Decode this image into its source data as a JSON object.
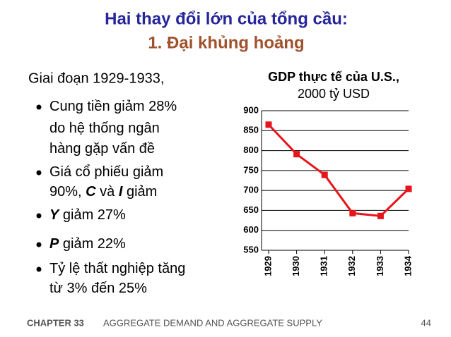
{
  "header": {
    "title": "Hai thay đổi lớn của tổng cầu:",
    "subtitle": "1.  Đại khủng hoảng"
  },
  "intro": "Giai đoạn 1929-1933,",
  "bullets": [
    {
      "lines": [
        [
          "Cung tiền giảm 28%"
        ],
        [
          "do hệ thống ngân"
        ],
        [
          "hàng gặp vấn đề"
        ]
      ]
    },
    {
      "lines": [
        [
          "Giá cổ phiếu giảm"
        ],
        [
          "90%, ",
          {
            "text": "C",
            "em": true
          },
          " và ",
          {
            "text": "I",
            "em": true
          },
          " giảm"
        ]
      ]
    },
    {
      "lines": [
        [
          {
            "text": "Y",
            "em": true
          },
          "  giảm 27%"
        ]
      ]
    },
    {
      "lines": [
        [
          {
            "text": "P",
            "em": true
          },
          "  giảm 22%"
        ]
      ]
    },
    {
      "lines": [
        [
          "Tỷ lệ thất nghiệp tăng"
        ],
        [
          "từ 3% đến 25%"
        ]
      ]
    }
  ],
  "chart_data": {
    "type": "line",
    "title": "GDP thực tế của U.S.,",
    "subtitle": "2000 tỷ USD",
    "categories": [
      "1929",
      "1930",
      "1931",
      "1932",
      "1933",
      "1934"
    ],
    "values": [
      865,
      791,
      739,
      643,
      636,
      704
    ],
    "color": "#e8141b",
    "ylim": [
      550,
      900
    ],
    "yticks": [
      550,
      600,
      650,
      700,
      750,
      800,
      850,
      900
    ],
    "grid": true
  },
  "footer": {
    "chapter": "CHAPTER 33",
    "topic": "AGGREGATE DEMAND AND AGGREGATE SUPPLY",
    "page": "44"
  }
}
